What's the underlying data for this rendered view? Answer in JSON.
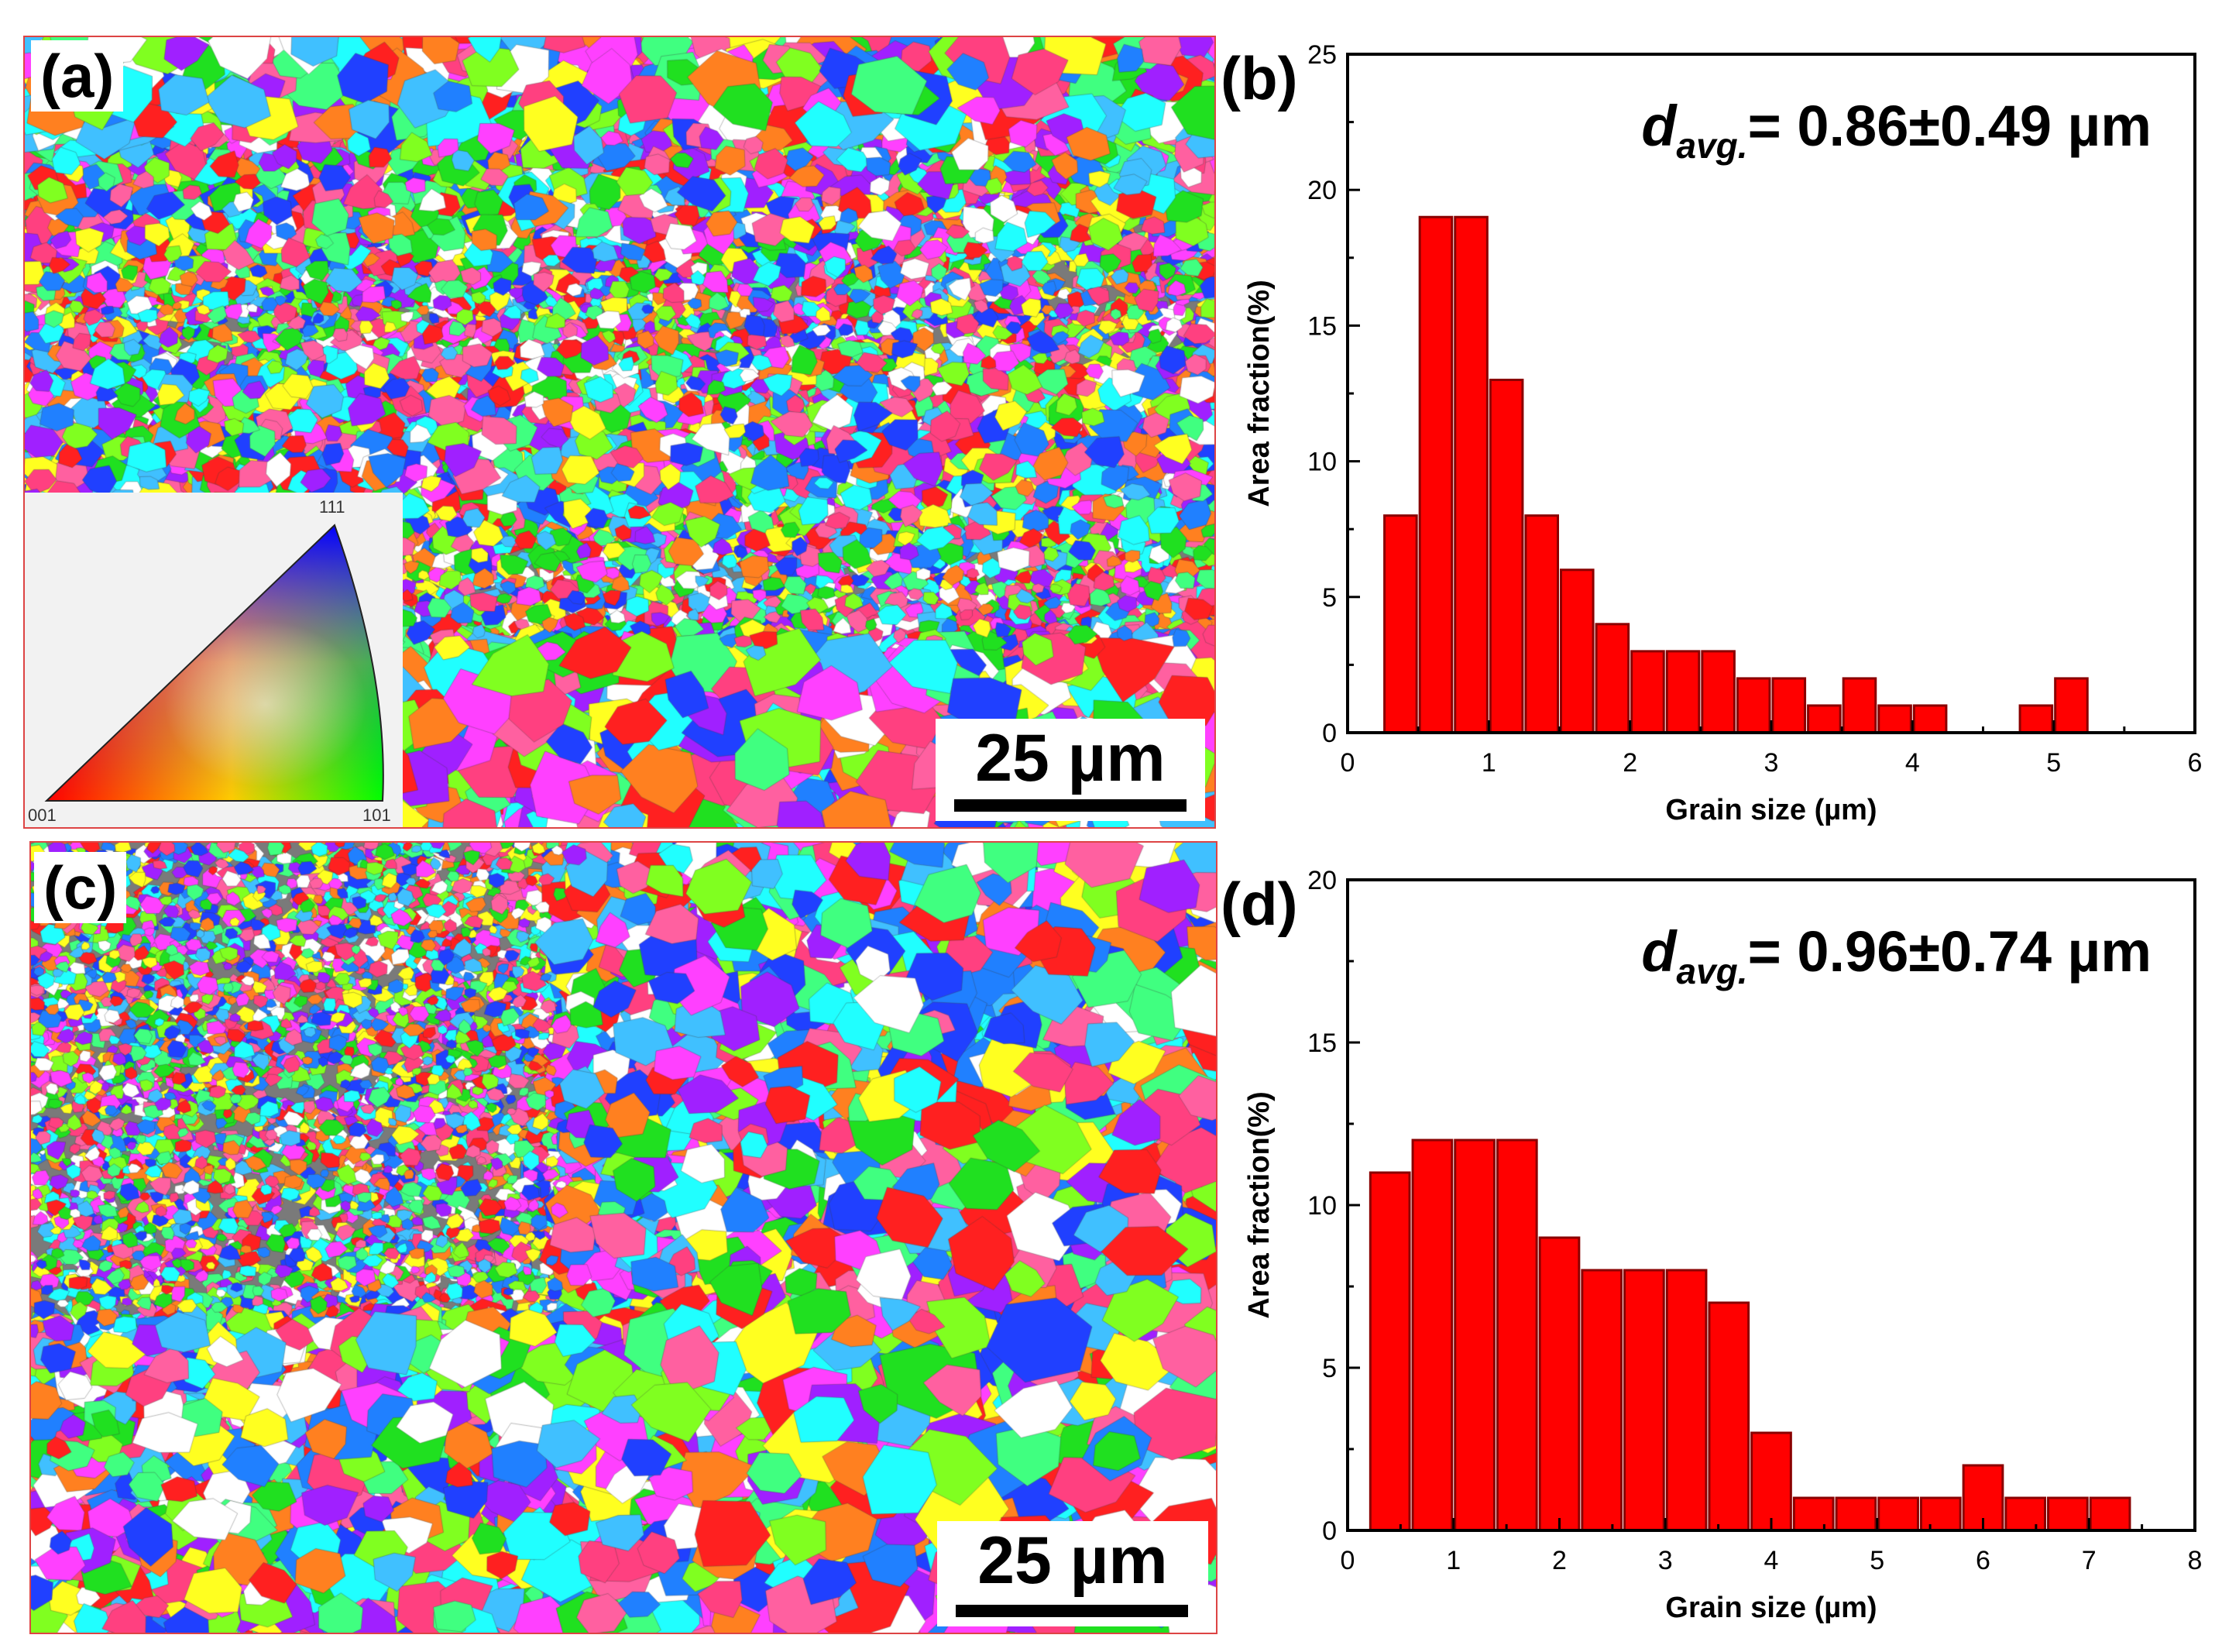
{
  "panels": {
    "a": {
      "label": "(a)",
      "scale_bar": "25 µm"
    },
    "c": {
      "label": "(c)",
      "scale_bar": "25 µm"
    }
  },
  "ipf_legend": {
    "top": "111",
    "bottom_left": "001",
    "bottom_right": "101"
  },
  "colors": {
    "bar": "#ff0000",
    "bar_edge": "#8a0000",
    "axis": "#000000"
  },
  "chart_data": [
    {
      "panel_label": "(b)",
      "type": "bar",
      "annotation_main": "d",
      "annotation_sub": "avg.",
      "annotation_value": "= 0.86±0.49 µm",
      "xlabel": "Grain size (µm)",
      "ylabel": "Area fraction(%)",
      "xlim": [
        0,
        6
      ],
      "ylim": [
        0,
        25
      ],
      "xticks": [
        "0",
        "1",
        "2",
        "3",
        "4",
        "5",
        "6"
      ],
      "yticks": [
        "0",
        "5",
        "10",
        "15",
        "20",
        "25"
      ],
      "bin_width": 0.25,
      "bin_centers": [
        0.375,
        0.625,
        0.875,
        1.125,
        1.375,
        1.625,
        1.875,
        2.125,
        2.375,
        2.625,
        2.875,
        3.125,
        3.375,
        3.625,
        3.875,
        4.125,
        4.375,
        4.625,
        4.875,
        5.125
      ],
      "values": [
        8,
        19,
        19,
        13,
        8,
        6,
        4,
        3,
        3,
        3,
        2,
        2,
        1,
        2,
        1,
        1,
        0,
        0,
        1,
        2
      ]
    },
    {
      "panel_label": "(d)",
      "type": "bar",
      "annotation_main": "d",
      "annotation_sub": "avg.",
      "annotation_value": "= 0.96±0.74 µm",
      "xlabel": "Grain size (µm)",
      "ylabel": "Area fraction(%)",
      "xlim": [
        0,
        8
      ],
      "ylim": [
        0,
        20
      ],
      "xticks": [
        "0",
        "1",
        "2",
        "3",
        "4",
        "5",
        "6",
        "7",
        "8"
      ],
      "yticks": [
        "0",
        "5",
        "10",
        "15",
        "20"
      ],
      "bin_width": 0.4,
      "bin_centers": [
        0.4,
        0.8,
        1.2,
        1.6,
        2.0,
        2.4,
        2.8,
        3.2,
        3.6,
        4.0,
        4.4,
        4.8,
        5.2,
        5.6,
        6.0,
        6.4,
        6.8,
        7.2
      ],
      "values": [
        11,
        12,
        12,
        12,
        9,
        8,
        8,
        8,
        7,
        3,
        1,
        1,
        1,
        1,
        2,
        1,
        1,
        1
      ]
    }
  ]
}
